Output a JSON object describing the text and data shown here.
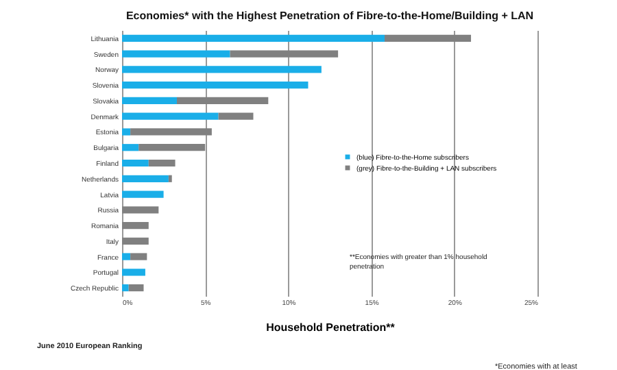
{
  "chart_data": {
    "type": "bar",
    "orientation": "horizontal",
    "stacked": true,
    "title": "Economies* with the Highest Penetration of Fibre-to-the-Home/Building + LAN",
    "xlabel": "Household Penetration**",
    "categories": [
      "Lithuania",
      "Sweden",
      "Norway",
      "Slovenia",
      "Slovakia",
      "Denmark",
      "Estonia",
      "Bulgaria",
      "Finland",
      "Netherlands",
      "Latvia",
      "Russia",
      "Romania",
      "Italy",
      "France",
      "Portugal",
      "Czech Republic"
    ],
    "series": [
      {
        "name": "(blue) Fibre-to-the-Home subscribers",
        "color": "#1aaee8",
        "values": [
          15.8,
          6.5,
          12.0,
          11.2,
          3.3,
          5.8,
          0.5,
          1.0,
          1.6,
          2.8,
          2.5,
          0,
          0,
          0,
          0.5,
          1.4,
          0.4
        ]
      },
      {
        "name": "(grey) Fibre-to-the-Building + LAN subscribers",
        "color": "#808080",
        "values": [
          5.2,
          6.5,
          0,
          0,
          5.5,
          2.1,
          4.9,
          4.0,
          1.6,
          0.2,
          0,
          2.2,
          1.6,
          1.6,
          1.0,
          0,
          0.9
        ]
      }
    ],
    "xlim": [
      0,
      25
    ],
    "xticks": [
      {
        "value": 0,
        "label": "0%"
      },
      {
        "value": 5,
        "label": "5%"
      },
      {
        "value": 10,
        "label": "10%"
      },
      {
        "value": 15,
        "label": "15%"
      },
      {
        "value": 20,
        "label": "20%"
      },
      {
        "value": 25,
        "label": "25%"
      }
    ],
    "grid": "x",
    "legend": "right",
    "annotations": [
      "**Economies with greater than 1% household penetration",
      "June 2010 European Ranking",
      "*Economies with at least"
    ]
  }
}
